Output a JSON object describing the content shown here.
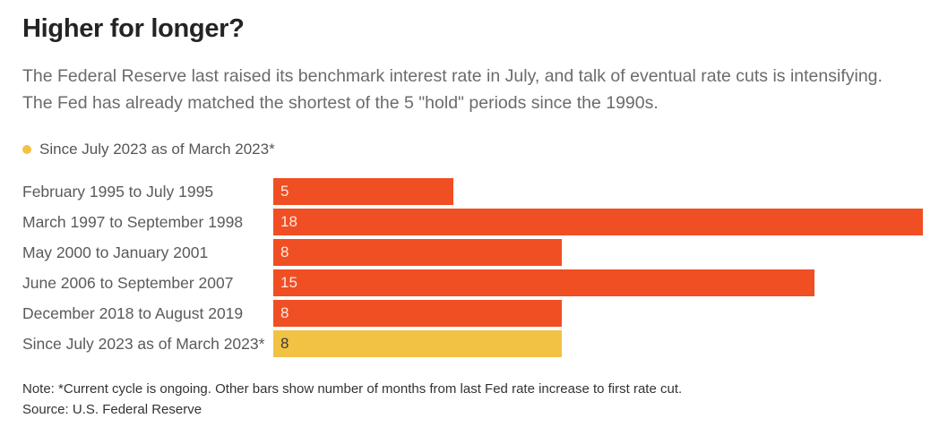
{
  "header": {
    "title": "Higher for longer?",
    "subtitle_lines": [
      "The Federal Reserve last raised its benchmark interest rate in July, and talk of eventual rate cuts is intensifying.",
      "The Fed has already matched the shortest of the 5 \"hold\" periods since the 1990s."
    ]
  },
  "legend": {
    "label": "Since July 2023 as of March 2023*",
    "dot_color": "#F2C245"
  },
  "colors": {
    "bar_default": "#F04E23",
    "bar_highlight": "#F2C245",
    "value_label_on_default": "rgba(255,255,255,0.88)",
    "value_label_on_highlight": "#3a3a3a"
  },
  "chart_data": {
    "type": "bar",
    "orientation": "horizontal",
    "title": "Higher for longer?",
    "xlabel": "",
    "ylabel": "",
    "xlim": [
      0,
      18
    ],
    "grid": false,
    "value_labels_inside_bars": true,
    "categories": [
      "February 1995 to July 1995",
      "March 1997 to September 1998",
      "May 2000 to January 2001",
      "June 2006 to September 2007",
      "December 2018 to August 2019",
      "Since July 2023 as of March 2023*"
    ],
    "values": [
      5,
      18,
      8,
      15,
      8,
      8
    ],
    "highlighted_index": 5,
    "units": "months"
  },
  "footer": {
    "note": "Note: *Current cycle is ongoing. Other bars show number of months from last Fed rate increase to first rate cut.",
    "source": "Source: U.S. Federal Reserve"
  }
}
